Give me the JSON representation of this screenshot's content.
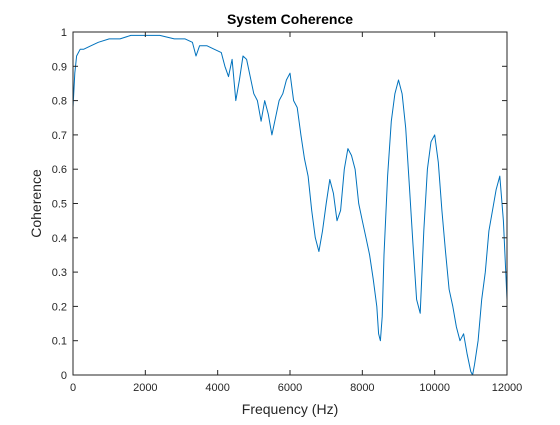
{
  "colors": {
    "line": "#0072BD",
    "axis": "#262626",
    "background": "#ffffff"
  },
  "chart_data": {
    "type": "line",
    "title": "System Coherence",
    "xlabel": "Frequency (Hz)",
    "ylabel": "Coherence",
    "xlim": [
      0,
      12000
    ],
    "ylim": [
      0,
      1
    ],
    "xticks": [
      0,
      2000,
      4000,
      6000,
      8000,
      10000,
      12000
    ],
    "xtick_labels": [
      "0",
      "2000",
      "4000",
      "6000",
      "8000",
      "10000",
      "12000"
    ],
    "yticks": [
      0,
      0.1,
      0.2,
      0.3,
      0.4,
      0.5,
      0.6,
      0.7,
      0.8,
      0.9,
      1
    ],
    "ytick_labels": [
      "0",
      "0.1",
      "0.2",
      "0.3",
      "0.4",
      "0.5",
      "0.6",
      "0.7",
      "0.8",
      "0.9",
      "1"
    ],
    "grid": false,
    "box": true,
    "series": [
      {
        "x": [
          0,
          50,
          100,
          200,
          300,
          500,
          700,
          1000,
          1300,
          1600,
          2000,
          2400,
          2800,
          3100,
          3300,
          3400,
          3500,
          3700,
          3900,
          4100,
          4200,
          4300,
          4400,
          4500,
          4600,
          4700,
          4800,
          5000,
          5100,
          5200,
          5300,
          5400,
          5500,
          5600,
          5700,
          5800,
          5900,
          6000,
          6100,
          6200,
          6300,
          6400,
          6500,
          6600,
          6700,
          6800,
          6900,
          7000,
          7100,
          7200,
          7300,
          7400,
          7500,
          7600,
          7700,
          7800,
          7900,
          8000,
          8100,
          8200,
          8300,
          8400,
          8450,
          8500,
          8550,
          8600,
          8700,
          8800,
          8900,
          9000,
          9100,
          9200,
          9300,
          9400,
          9500,
          9600,
          9700,
          9800,
          9900,
          10000,
          10100,
          10200,
          10300,
          10400,
          10500,
          10600,
          10700,
          10800,
          10900,
          11000,
          11050,
          11100,
          11200,
          11300,
          11400,
          11500,
          11600,
          11700,
          11800,
          11900,
          12000
        ],
        "y": [
          0.78,
          0.88,
          0.93,
          0.95,
          0.95,
          0.96,
          0.97,
          0.98,
          0.98,
          0.99,
          0.99,
          0.99,
          0.98,
          0.98,
          0.97,
          0.93,
          0.96,
          0.96,
          0.95,
          0.94,
          0.9,
          0.87,
          0.92,
          0.8,
          0.86,
          0.93,
          0.92,
          0.82,
          0.8,
          0.74,
          0.8,
          0.76,
          0.7,
          0.75,
          0.8,
          0.82,
          0.86,
          0.88,
          0.8,
          0.78,
          0.7,
          0.63,
          0.58,
          0.48,
          0.4,
          0.36,
          0.42,
          0.5,
          0.57,
          0.53,
          0.45,
          0.48,
          0.6,
          0.66,
          0.64,
          0.6,
          0.5,
          0.45,
          0.4,
          0.35,
          0.28,
          0.2,
          0.12,
          0.1,
          0.17,
          0.35,
          0.58,
          0.74,
          0.82,
          0.86,
          0.82,
          0.72,
          0.55,
          0.38,
          0.22,
          0.18,
          0.42,
          0.6,
          0.68,
          0.7,
          0.62,
          0.48,
          0.36,
          0.25,
          0.2,
          0.14,
          0.1,
          0.12,
          0.06,
          0.01,
          0.0,
          0.03,
          0.1,
          0.22,
          0.3,
          0.42,
          0.48,
          0.54,
          0.58,
          0.45,
          0.22
        ]
      }
    ]
  }
}
